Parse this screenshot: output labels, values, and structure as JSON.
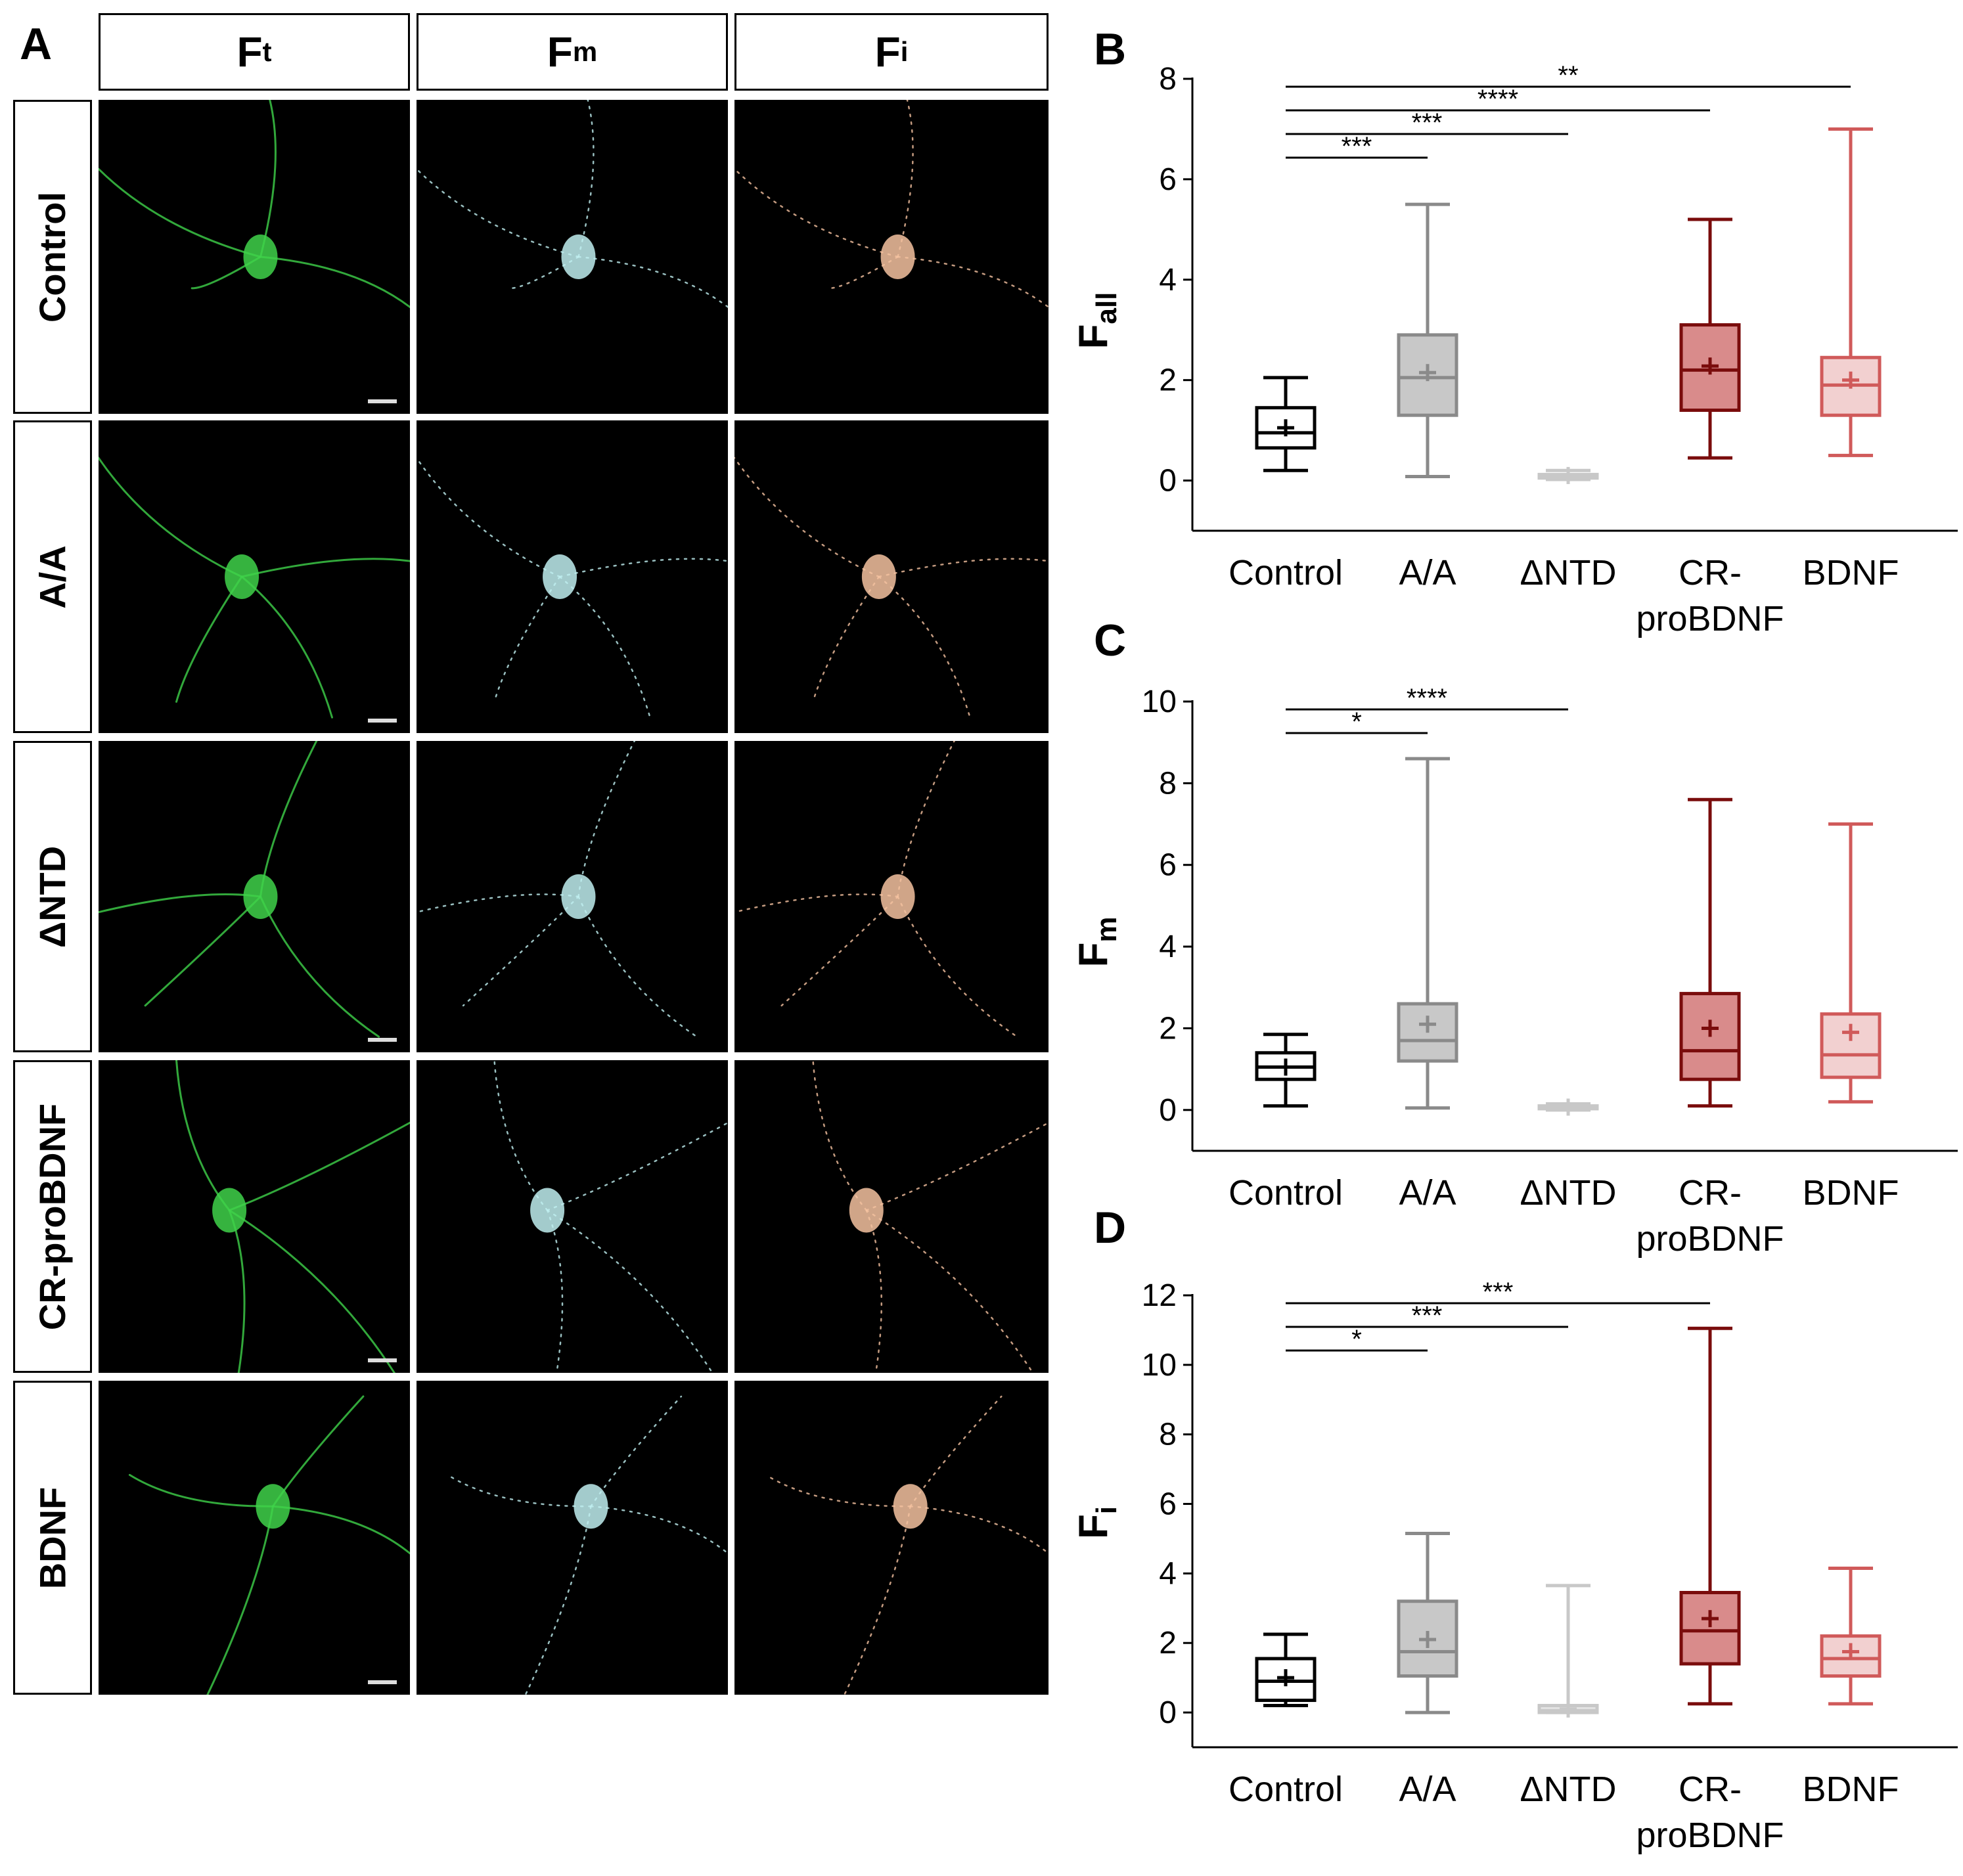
{
  "figure": {
    "panel_labels": [
      "A",
      "B",
      "C",
      "D"
    ],
    "image_grid": {
      "columns": [
        {
          "base": "F",
          "sub": "t",
          "color": "#3fd24a"
        },
        {
          "base": "F",
          "sub": "m",
          "color": "#bfeff0"
        },
        {
          "base": "F",
          "sub": "i",
          "color": "#f5c2a0"
        }
      ],
      "rows": [
        "Control",
        "A/A",
        "ΔNTD",
        "CR-proBDNF",
        "BDNF"
      ]
    }
  },
  "chart_data": [
    {
      "panel": "B",
      "type": "box",
      "ylabel": "F",
      "ylabel_sub": "all",
      "ylim": [
        -1,
        8
      ],
      "yticks": [
        0,
        2,
        4,
        6,
        8
      ],
      "categories": [
        "Control",
        "A/A",
        "ΔNTD",
        "CR-\nproBDNF",
        "BDNF"
      ],
      "colors": [
        "#000000",
        "#8a8a8a",
        "#c8c8c8",
        "#7a0c0c",
        "#d05a5a"
      ],
      "fills": [
        "#ffffff",
        "#c8c8c8",
        "#e4e4e4",
        "#d98b8b",
        "#f2d0d0"
      ],
      "boxes": [
        {
          "min": 0.2,
          "q1": 0.65,
          "median": 0.95,
          "q3": 1.45,
          "max": 2.05,
          "mean": 1.05
        },
        {
          "min": 0.08,
          "q1": 1.3,
          "median": 2.05,
          "q3": 2.9,
          "max": 5.5,
          "mean": 2.15
        },
        {
          "min": 0.02,
          "q1": 0.05,
          "median": 0.08,
          "q3": 0.12,
          "max": 0.2,
          "mean": 0.1
        },
        {
          "min": 0.45,
          "q1": 1.4,
          "median": 2.2,
          "q3": 3.1,
          "max": 5.2,
          "mean": 2.28
        },
        {
          "min": 0.5,
          "q1": 1.3,
          "median": 1.9,
          "q3": 2.45,
          "max": 7.0,
          "mean": 2.0
        }
      ],
      "significance": [
        {
          "from": 0,
          "to": 1,
          "label": "***"
        },
        {
          "from": 0,
          "to": 2,
          "label": "***"
        },
        {
          "from": 0,
          "to": 3,
          "label": "****"
        },
        {
          "from": 0,
          "to": 4,
          "label": "**"
        }
      ]
    },
    {
      "panel": "C",
      "type": "box",
      "ylabel": "F",
      "ylabel_sub": "m",
      "ylim": [
        -1,
        10
      ],
      "yticks": [
        0,
        2,
        4,
        6,
        8,
        10
      ],
      "categories": [
        "Control",
        "A/A",
        "ΔNTD",
        "CR-\nproBDNF",
        "BDNF"
      ],
      "colors": [
        "#000000",
        "#8a8a8a",
        "#c8c8c8",
        "#7a0c0c",
        "#d05a5a"
      ],
      "fills": [
        "#ffffff",
        "#c8c8c8",
        "#e4e4e4",
        "#d98b8b",
        "#f2d0d0"
      ],
      "boxes": [
        {
          "min": 0.1,
          "q1": 0.75,
          "median": 1.05,
          "q3": 1.4,
          "max": 1.85,
          "mean": 1.05
        },
        {
          "min": 0.05,
          "q1": 1.2,
          "median": 1.7,
          "q3": 2.6,
          "max": 8.6,
          "mean": 2.1
        },
        {
          "min": 0.0,
          "q1": 0.03,
          "median": 0.06,
          "q3": 0.1,
          "max": 0.15,
          "mean": 0.07
        },
        {
          "min": 0.1,
          "q1": 0.75,
          "median": 1.45,
          "q3": 2.85,
          "max": 7.6,
          "mean": 2.0
        },
        {
          "min": 0.2,
          "q1": 0.8,
          "median": 1.35,
          "q3": 2.35,
          "max": 7.0,
          "mean": 1.9
        }
      ],
      "significance": [
        {
          "from": 0,
          "to": 1,
          "label": "*"
        },
        {
          "from": 0,
          "to": 2,
          "label": "****"
        }
      ]
    },
    {
      "panel": "D",
      "type": "box",
      "ylabel": "F",
      "ylabel_sub": "i",
      "ylim": [
        -1,
        12
      ],
      "yticks": [
        0,
        2,
        4,
        6,
        8,
        10,
        12
      ],
      "categories": [
        "Control",
        "A/A",
        "ΔNTD",
        "CR-\nproBDNF",
        "BDNF"
      ],
      "colors": [
        "#000000",
        "#8a8a8a",
        "#c8c8c8",
        "#7a0c0c",
        "#d05a5a"
      ],
      "fills": [
        "#ffffff",
        "#c8c8c8",
        "#e4e4e4",
        "#d98b8b",
        "#f2d0d0"
      ],
      "boxes": [
        {
          "min": 0.2,
          "q1": 0.35,
          "median": 0.9,
          "q3": 1.55,
          "max": 2.25,
          "mean": 1.0
        },
        {
          "min": 0.0,
          "q1": 1.05,
          "median": 1.75,
          "q3": 3.2,
          "max": 5.15,
          "mean": 2.1
        },
        {
          "min": 0.0,
          "q1": 0.0,
          "median": 0.05,
          "q3": 0.2,
          "max": 3.65,
          "mean": 0.1
        },
        {
          "min": 0.25,
          "q1": 1.4,
          "median": 2.35,
          "q3": 3.45,
          "max": 11.05,
          "mean": 2.7
        },
        {
          "min": 0.25,
          "q1": 1.05,
          "median": 1.55,
          "q3": 2.2,
          "max": 4.15,
          "mean": 1.75
        }
      ],
      "significance": [
        {
          "from": 0,
          "to": 1,
          "label": "*"
        },
        {
          "from": 0,
          "to": 2,
          "label": "***"
        },
        {
          "from": 0,
          "to": 3,
          "label": "***"
        }
      ]
    }
  ]
}
